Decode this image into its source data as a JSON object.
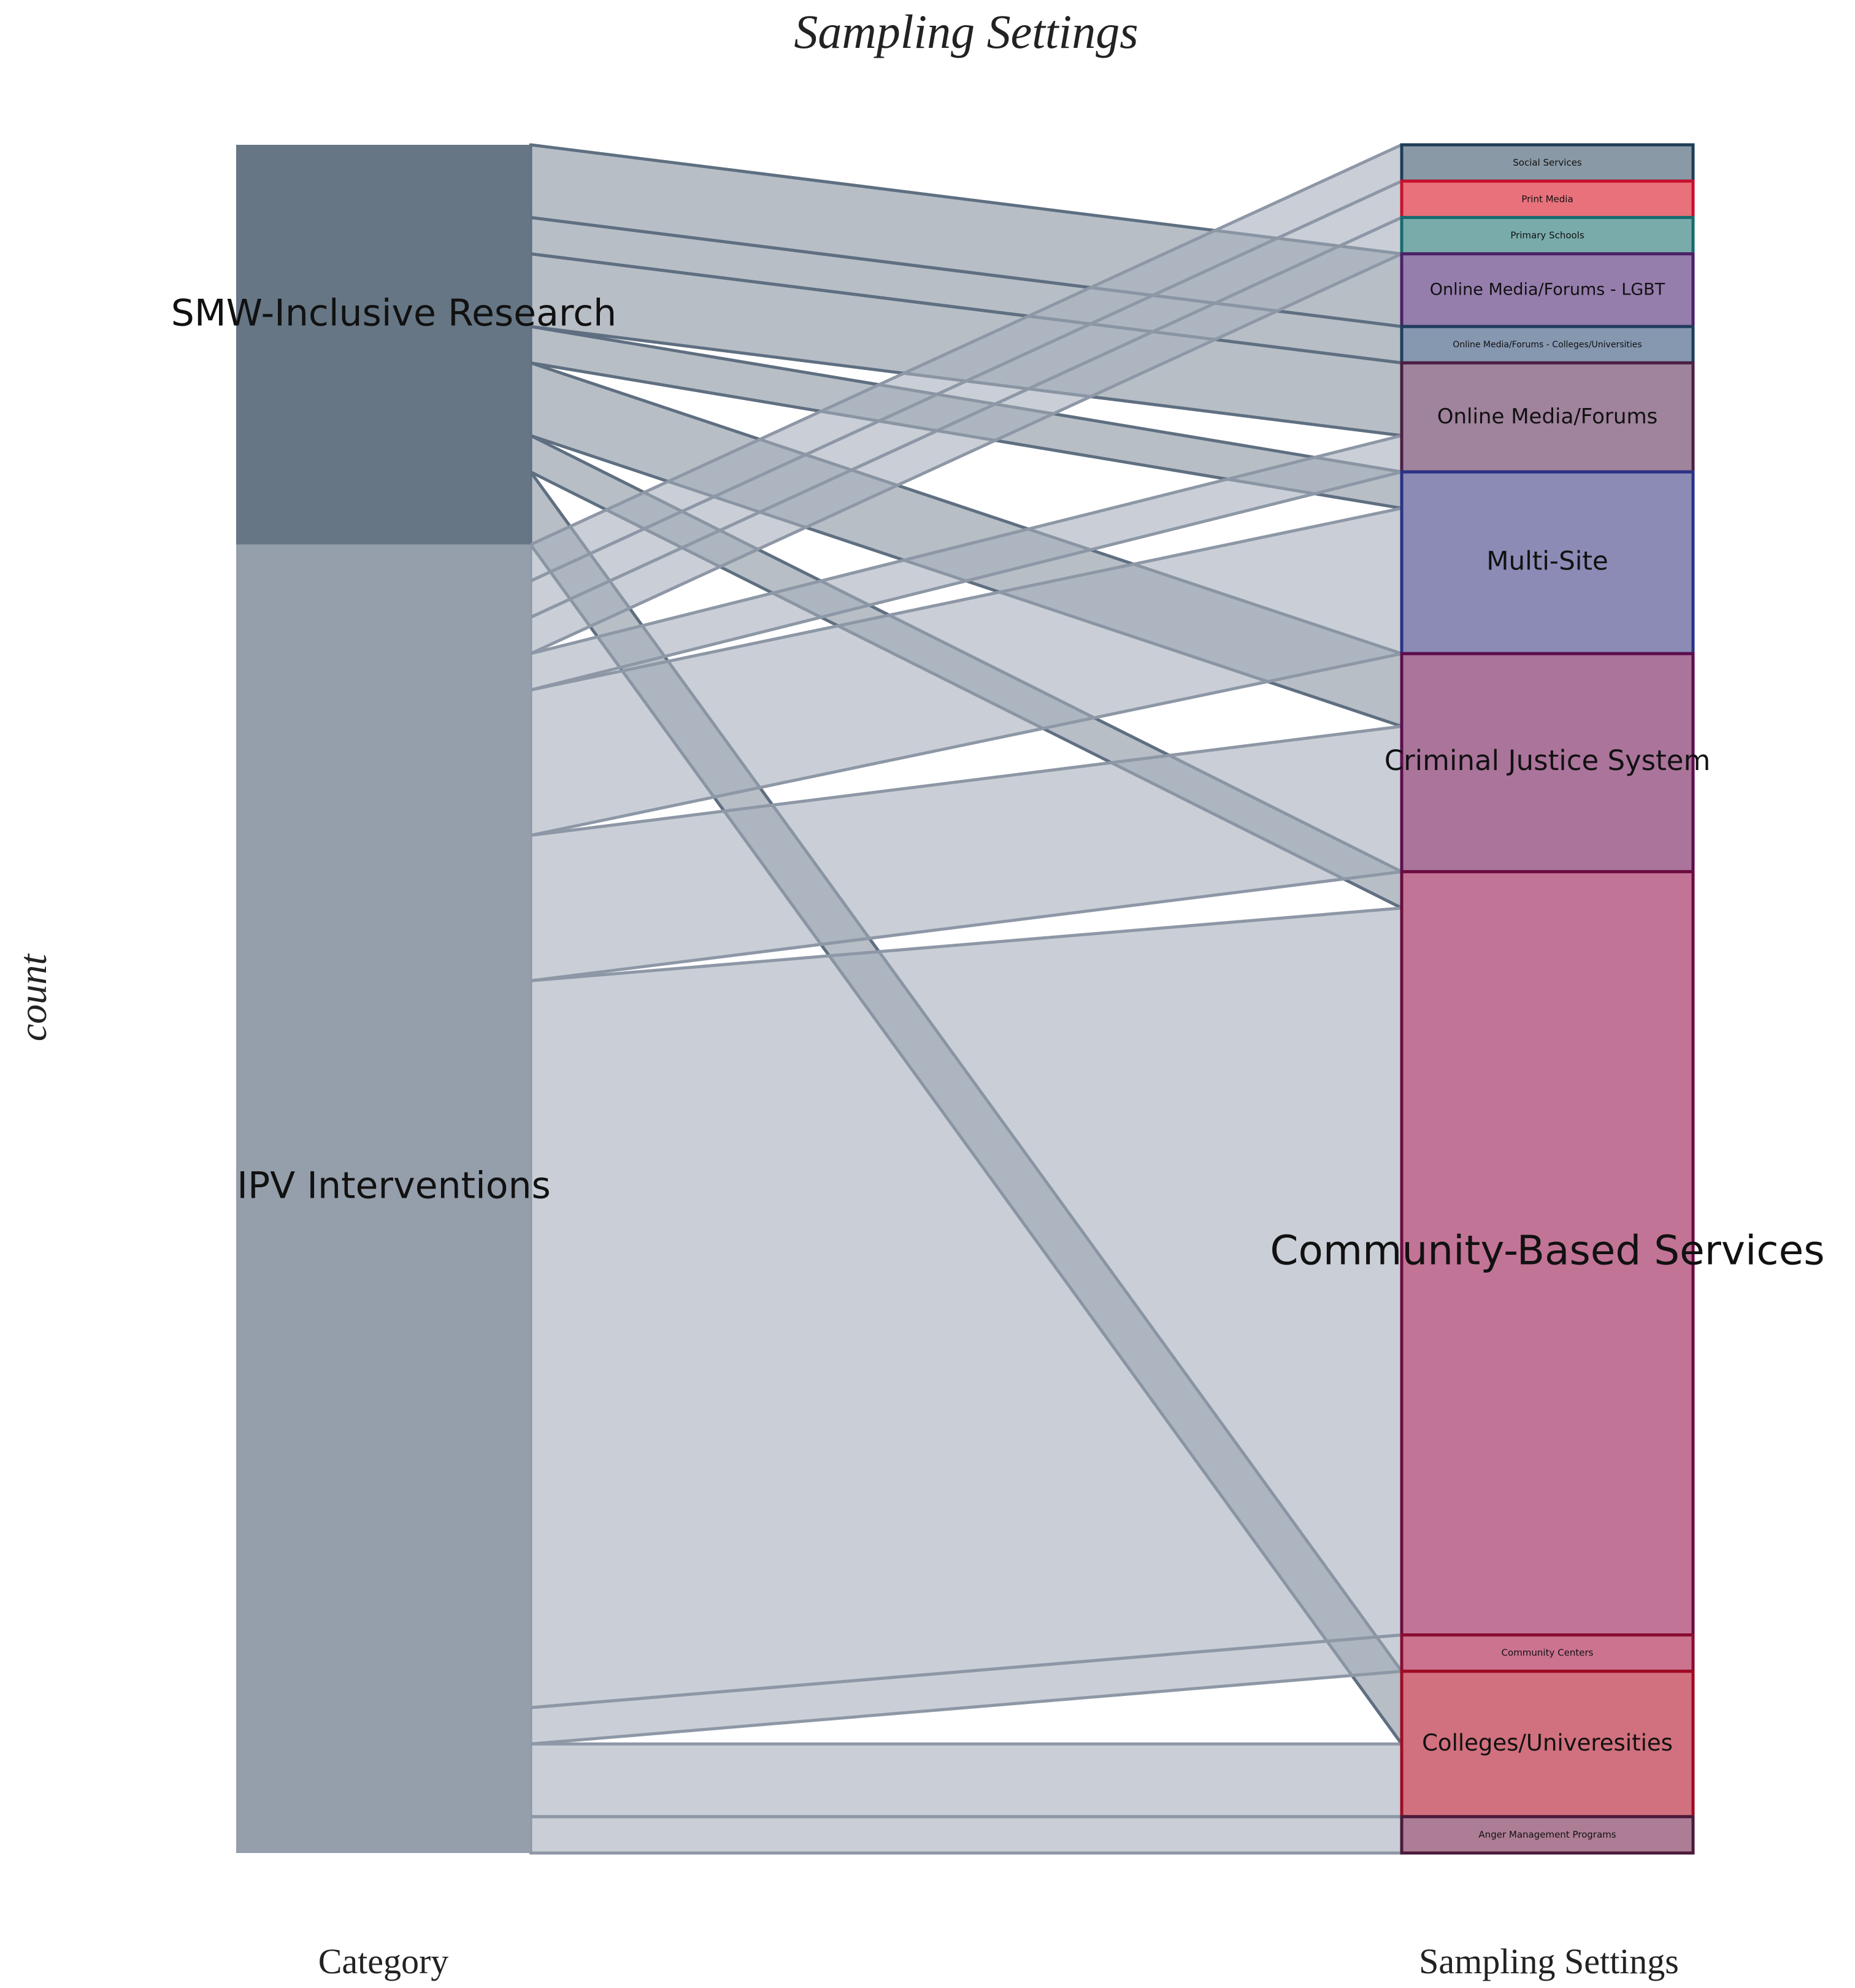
{
  "chart_data": {
    "type": "alluvial",
    "title": "Sampling Settings",
    "ylabel": "count",
    "axis_labels": [
      "Category",
      "Sampling Settings"
    ],
    "categories": [
      {
        "name": "SMW-Inclusive Research",
        "color": "#667685"
      },
      {
        "name": "IPV Interventions",
        "color": "#959eab"
      }
    ],
    "settings": [
      {
        "name": "Social Services",
        "count": 1,
        "fill": "#8999a6",
        "stroke": "#1f3d57",
        "label_size": 15
      },
      {
        "name": "Print Media",
        "count": 1,
        "fill": "#e8717b",
        "stroke": "#c8102e",
        "label_size": 15
      },
      {
        "name": "Primary Schools",
        "count": 1,
        "fill": "#7aabab",
        "stroke": "#176b6e",
        "label_size": 15
      },
      {
        "name": "Online Media/Forums - LGBT",
        "count": 2,
        "fill": "#957dac",
        "stroke": "#4b2168",
        "label_size": 27
      },
      {
        "name": "Online Media/Forums - Colleges/Universities",
        "count": 1,
        "fill": "#8697b0",
        "stroke": "#1f3d5c",
        "label_size": 14
      },
      {
        "name": "Online Media/Forums",
        "count": 3,
        "fill": "#a0839c",
        "stroke": "#4b1f44",
        "label_size": 34
      },
      {
        "name": "Multi-Site",
        "count": 5,
        "fill": "#8b8bb5",
        "stroke": "#2a3285",
        "label_size": 42
      },
      {
        "name": "Criminal Justice System",
        "count": 6,
        "fill": "#ab749b",
        "stroke": "#5d0d4d",
        "label_size": 45
      },
      {
        "name": "Community-Based Services",
        "count": 21,
        "fill": "#c27496",
        "stroke": "#6b0b3e",
        "label_size": 66
      },
      {
        "name": "Community Centers",
        "count": 1,
        "fill": "#cc7390",
        "stroke": "#8a0d32",
        "label_size": 15
      },
      {
        "name": "Colleges/Univeresities",
        "count": 4,
        "fill": "#d1707e",
        "stroke": "#9e0b22",
        "label_size": 37
      },
      {
        "name": "Anger Management Programs",
        "count": 1,
        "fill": "#ad7d95",
        "stroke": "#4a1b3a",
        "label_size": 15
      }
    ],
    "flows": [
      {
        "from": "SMW-Inclusive Research",
        "to": "Online Media/Forums - LGBT",
        "value": 2
      },
      {
        "from": "SMW-Inclusive Research",
        "to": "Online Media/Forums - Colleges/Universities",
        "value": 1
      },
      {
        "from": "SMW-Inclusive Research",
        "to": "Online Media/Forums",
        "value": 2
      },
      {
        "from": "SMW-Inclusive Research",
        "to": "Multi-Site",
        "value": 1
      },
      {
        "from": "SMW-Inclusive Research",
        "to": "Criminal Justice System",
        "value": 2
      },
      {
        "from": "SMW-Inclusive Research",
        "to": "Community-Based Services",
        "value": 1
      },
      {
        "from": "SMW-Inclusive Research",
        "to": "Colleges/Univeresities",
        "value": 2
      },
      {
        "from": "IPV Interventions",
        "to": "Social Services",
        "value": 1
      },
      {
        "from": "IPV Interventions",
        "to": "Print Media",
        "value": 1
      },
      {
        "from": "IPV Interventions",
        "to": "Primary Schools",
        "value": 1
      },
      {
        "from": "IPV Interventions",
        "to": "Online Media/Forums",
        "value": 1
      },
      {
        "from": "IPV Interventions",
        "to": "Multi-Site",
        "value": 4
      },
      {
        "from": "IPV Interventions",
        "to": "Criminal Justice System",
        "value": 4
      },
      {
        "from": "IPV Interventions",
        "to": "Community-Based Services",
        "value": 20
      },
      {
        "from": "IPV Interventions",
        "to": "Community Centers",
        "value": 1
      },
      {
        "from": "IPV Interventions",
        "to": "Colleges/Univeresities",
        "value": 2
      },
      {
        "from": "IPV Interventions",
        "to": "Anger Management Programs",
        "value": 1
      }
    ],
    "grid": false,
    "legend": "none"
  }
}
